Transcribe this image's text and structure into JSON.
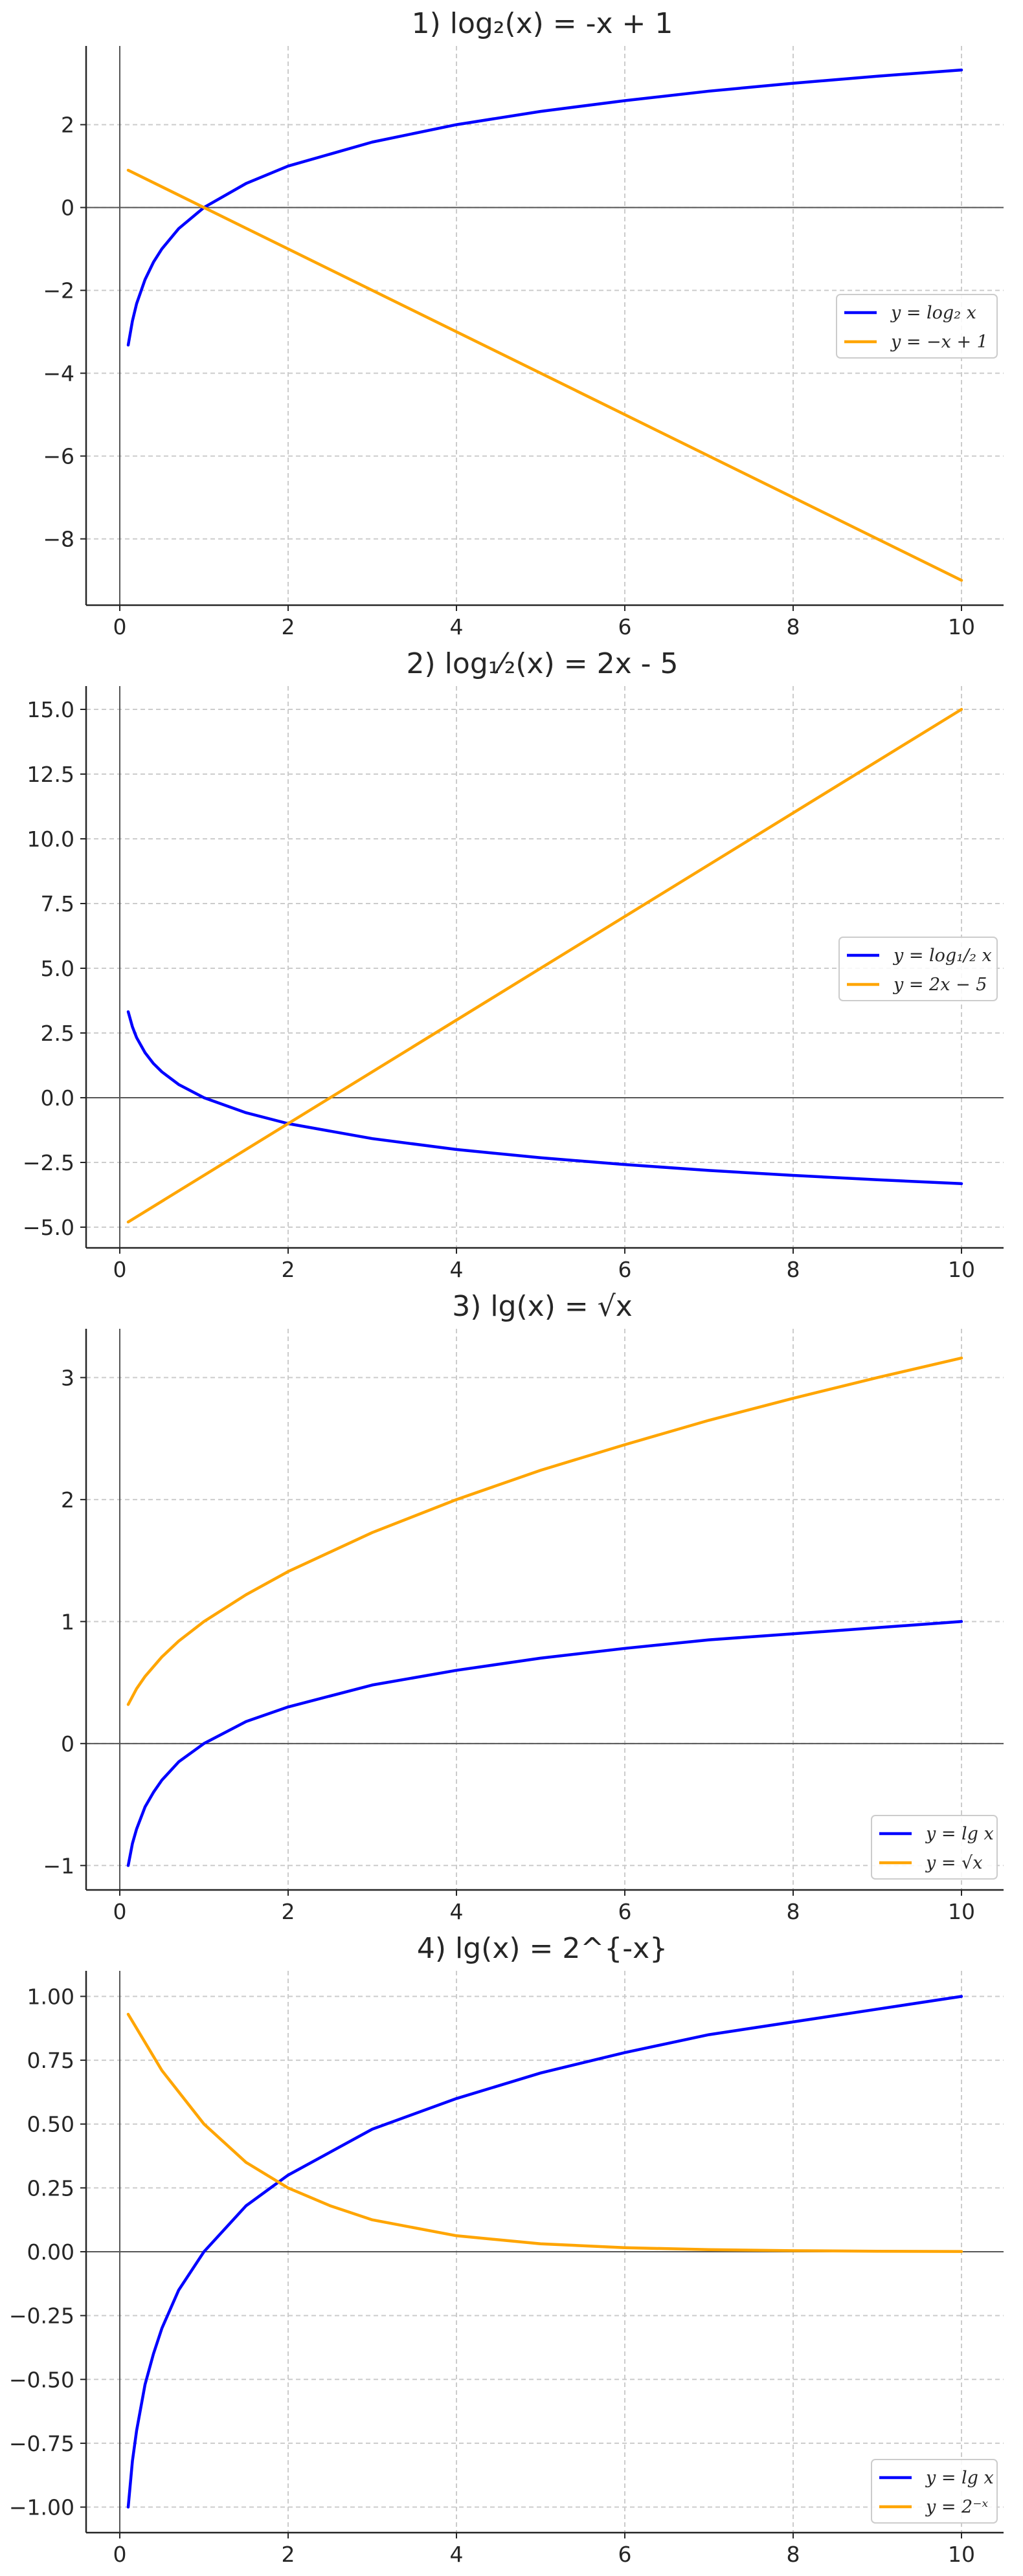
{
  "chart_data": [
    {
      "type": "line",
      "title": "1) log₂(x) = -x + 1",
      "xlabel": "",
      "ylabel": "",
      "xlim": [
        -0.4,
        10.5
      ],
      "ylim": [
        -9.6,
        3.9
      ],
      "xticks": [
        0,
        2,
        4,
        6,
        8,
        10
      ],
      "yticks": [
        2,
        0,
        -2,
        -4,
        -6,
        -8
      ],
      "ytick_labels": [
        "2",
        "0",
        "−2",
        "−4",
        "−6",
        "−8"
      ],
      "grid": true,
      "legend_position": "center-right",
      "series": [
        {
          "name": "y = log₂ x",
          "color": "#0000ff",
          "x": [
            0.1,
            0.15,
            0.2,
            0.3,
            0.4,
            0.5,
            0.7,
            1,
            1.5,
            2,
            3,
            4,
            5,
            6,
            7,
            8,
            9,
            10
          ],
          "y": [
            -3.32,
            -2.74,
            -2.32,
            -1.74,
            -1.32,
            -1.0,
            -0.51,
            0.0,
            0.58,
            1.0,
            1.58,
            2.0,
            2.32,
            2.58,
            2.81,
            3.0,
            3.17,
            3.32
          ]
        },
        {
          "name": "y = −x + 1",
          "color": "#ffa500",
          "x": [
            0.1,
            10
          ],
          "y": [
            0.9,
            -9.0
          ]
        }
      ]
    },
    {
      "type": "line",
      "title": "2) log₁⁄₂(x) = 2x - 5",
      "xlabel": "",
      "ylabel": "",
      "xlim": [
        -0.4,
        10.5
      ],
      "ylim": [
        -5.8,
        15.9
      ],
      "xticks": [
        0,
        2,
        4,
        6,
        8,
        10
      ],
      "yticks": [
        15,
        12.5,
        10,
        7.5,
        5,
        2.5,
        0,
        -2.5,
        -5
      ],
      "ytick_labels": [
        "15.0",
        "12.5",
        "10.0",
        "7.5",
        "5.0",
        "2.5",
        "0.0",
        "−2.5",
        "−5.0"
      ],
      "grid": true,
      "legend_position": "center-right",
      "series": [
        {
          "name": "y = log₁/₂ x",
          "color": "#0000ff",
          "x": [
            0.1,
            0.15,
            0.2,
            0.3,
            0.4,
            0.5,
            0.7,
            1,
            1.5,
            2,
            3,
            4,
            5,
            6,
            7,
            8,
            9,
            10
          ],
          "y": [
            3.32,
            2.74,
            2.32,
            1.74,
            1.32,
            1.0,
            0.51,
            0.0,
            -0.58,
            -1.0,
            -1.58,
            -2.0,
            -2.32,
            -2.58,
            -2.81,
            -3.0,
            -3.17,
            -3.32
          ]
        },
        {
          "name": "y = 2x − 5",
          "color": "#ffa500",
          "x": [
            0.1,
            10
          ],
          "y": [
            -4.8,
            15.0
          ]
        }
      ]
    },
    {
      "type": "line",
      "title": "3) lg(x) = √x",
      "xlabel": "",
      "ylabel": "",
      "xlim": [
        -0.4,
        10.5
      ],
      "ylim": [
        -1.2,
        3.4
      ],
      "xticks": [
        0,
        2,
        4,
        6,
        8,
        10
      ],
      "yticks": [
        3,
        2,
        1,
        0,
        -1
      ],
      "ytick_labels": [
        "3",
        "2",
        "1",
        "0",
        "−1"
      ],
      "grid": true,
      "legend_position": "lower-right",
      "series": [
        {
          "name": "y = lg x",
          "color": "#0000ff",
          "x": [
            0.1,
            0.15,
            0.2,
            0.3,
            0.4,
            0.5,
            0.7,
            1,
            1.5,
            2,
            3,
            4,
            5,
            6,
            7,
            8,
            9,
            10
          ],
          "y": [
            -1.0,
            -0.82,
            -0.7,
            -0.52,
            -0.4,
            -0.3,
            -0.15,
            0.0,
            0.18,
            0.3,
            0.48,
            0.6,
            0.7,
            0.78,
            0.85,
            0.9,
            0.95,
            1.0
          ]
        },
        {
          "name": "y = √x",
          "color": "#ffa500",
          "x": [
            0.1,
            0.2,
            0.3,
            0.5,
            0.7,
            1,
            1.5,
            2,
            3,
            4,
            5,
            6,
            7,
            8,
            9,
            10
          ],
          "y": [
            0.32,
            0.45,
            0.55,
            0.71,
            0.84,
            1.0,
            1.22,
            1.41,
            1.73,
            2.0,
            2.24,
            2.45,
            2.65,
            2.83,
            3.0,
            3.16
          ]
        }
      ]
    },
    {
      "type": "line",
      "title": "4) lg(x) = 2^{-x}",
      "xlabel": "",
      "ylabel": "",
      "xlim": [
        -0.4,
        10.5
      ],
      "ylim": [
        -1.1,
        1.1
      ],
      "xticks": [
        0,
        2,
        4,
        6,
        8,
        10
      ],
      "yticks": [
        1,
        0.75,
        0.5,
        0.25,
        0,
        -0.25,
        -0.5,
        -0.75,
        -1
      ],
      "ytick_labels": [
        "1.00",
        "0.75",
        "0.50",
        "0.25",
        "0.00",
        "−0.25",
        "−0.50",
        "−0.75",
        "−1.00"
      ],
      "grid": true,
      "legend_position": "lower-right",
      "series": [
        {
          "name": "y = lg x",
          "color": "#0000ff",
          "x": [
            0.1,
            0.15,
            0.2,
            0.3,
            0.4,
            0.5,
            0.7,
            1,
            1.5,
            2,
            3,
            4,
            5,
            6,
            7,
            8,
            9,
            10
          ],
          "y": [
            -1.0,
            -0.82,
            -0.7,
            -0.52,
            -0.4,
            -0.3,
            -0.15,
            0.0,
            0.18,
            0.3,
            0.48,
            0.6,
            0.7,
            0.78,
            0.85,
            0.9,
            0.95,
            1.0
          ]
        },
        {
          "name": "y = 2⁻ˣ",
          "color": "#ffa500",
          "x": [
            0.1,
            0.5,
            1,
            1.5,
            2,
            2.5,
            3,
            4,
            5,
            6,
            7,
            8,
            9,
            10
          ],
          "y": [
            0.93,
            0.71,
            0.5,
            0.35,
            0.25,
            0.18,
            0.125,
            0.0625,
            0.031,
            0.016,
            0.008,
            0.004,
            0.002,
            0.001
          ]
        }
      ]
    }
  ]
}
